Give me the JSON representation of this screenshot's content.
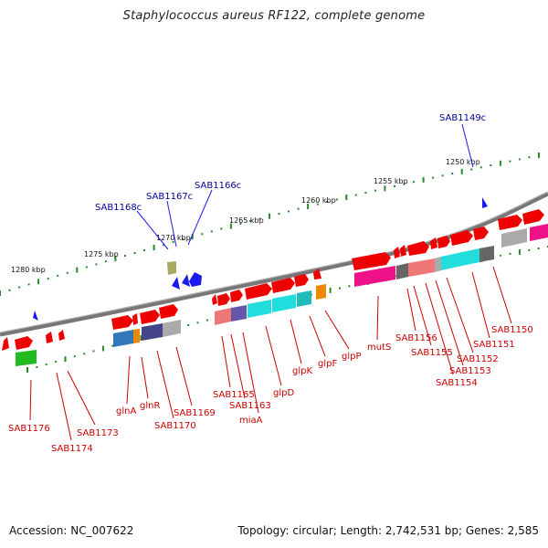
{
  "title": "Staphylococcus aureus RF122, complete genome",
  "footer": {
    "accession": "Accession: NC_007622",
    "summary": "Topology: circular; Length: 2,742,531 bp; Genes: 2,585"
  },
  "colors": {
    "backbone": "#777777",
    "tick": "#2a8a2a",
    "forward_gene": "#ee0000",
    "reverse_gene": "#1a1aee",
    "red_label": "#cc0000",
    "blue_label": "#000099",
    "cog_magenta": "#ee1188",
    "cog_cyan": "#22dddd",
    "cog_teal": "#22bbbb",
    "cog_salmon": "#ee7777",
    "cog_gray": "#aaaaaa",
    "cog_darkgray": "#666666",
    "cog_navy": "#444488",
    "cog_blue": "#3377bb",
    "cog_orange": "#ee8800",
    "cog_green": "#22bb22",
    "cog_khaki": "#aaaa66",
    "cog_purple": "#6655aa"
  },
  "kbp_labels": [
    "1280 kbp",
    "1275 kbp",
    "1270 kbp",
    "1265 kbp",
    "1260 kbp",
    "1255 kbp",
    "1250 kbp"
  ],
  "genes_lower": [
    "SAB1176",
    "SAB1174",
    "SAB1173",
    "glnA",
    "glnR",
    "SAB1170",
    "SAB1169",
    "SAB1165",
    "SAB1163",
    "miaA",
    "glpD",
    "glpK",
    "glpF",
    "glpP",
    "mutS",
    "SAB1156",
    "SAB1155",
    "SAB1154",
    "SAB1153",
    "SAB1152",
    "SAB1151",
    "SAB1150"
  ],
  "genes_upper": [
    "SAB1168c",
    "SAB1167c",
    "SAB1166c",
    "SAB1149c"
  ]
}
